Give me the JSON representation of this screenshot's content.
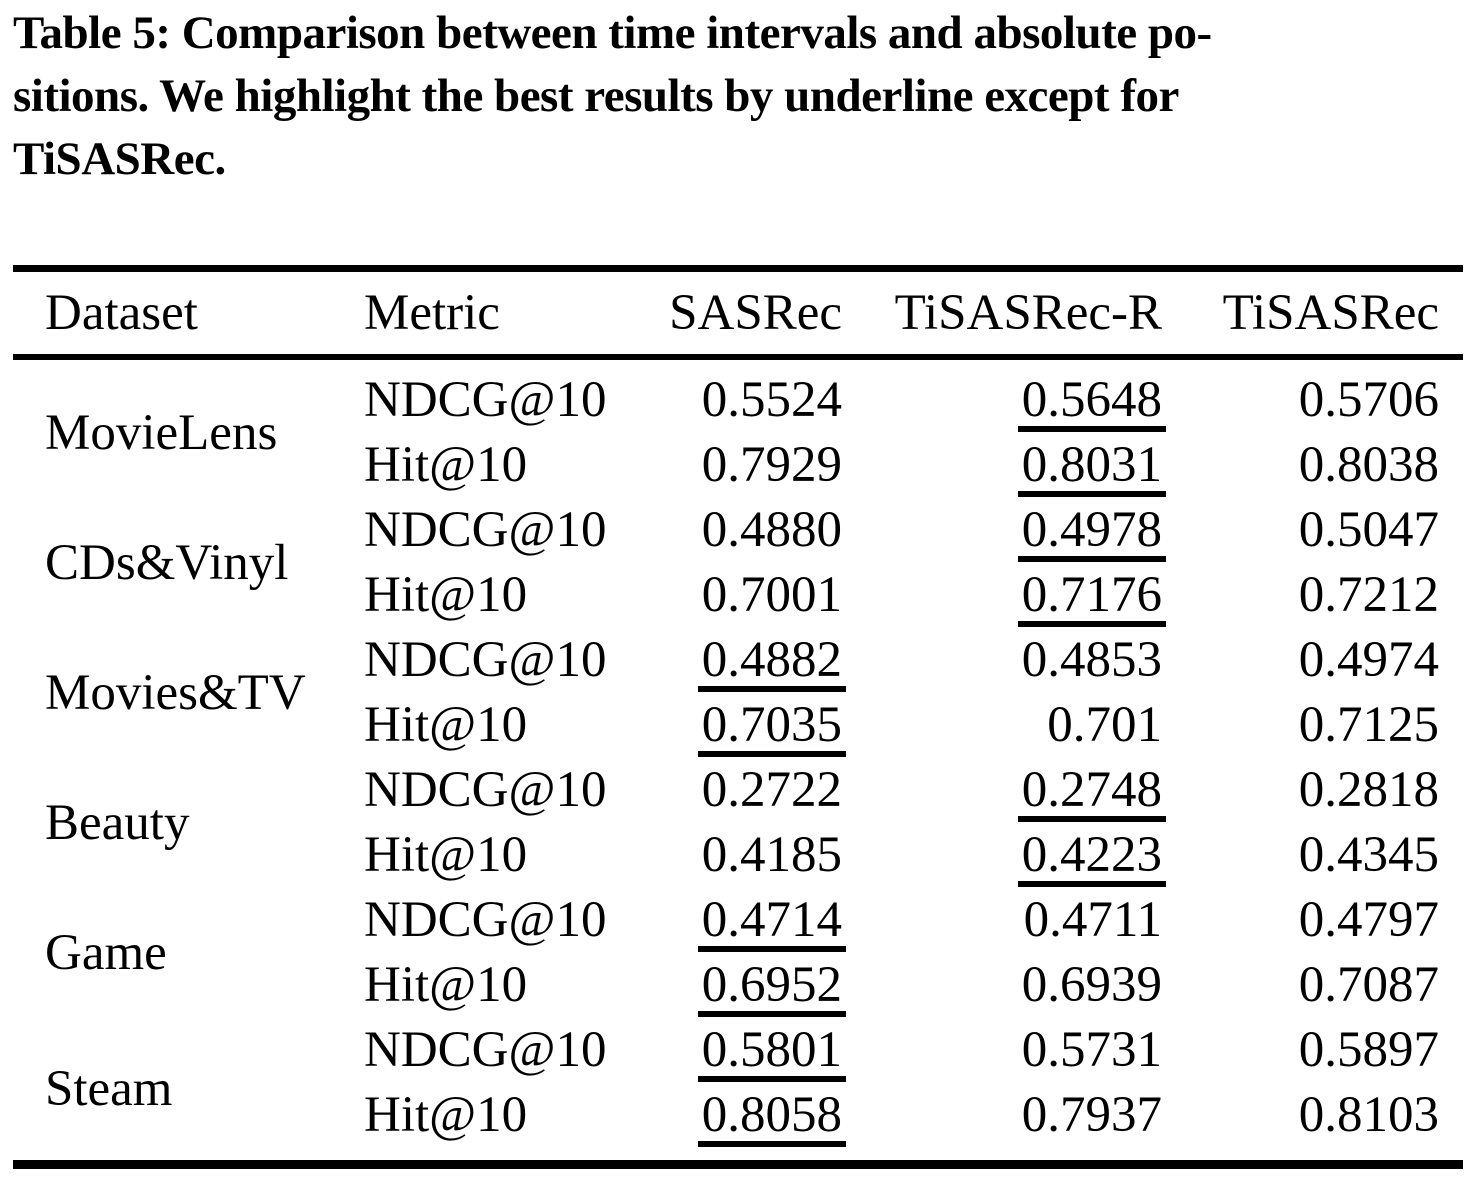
{
  "caption": {
    "lines": [
      "Table 5: Comparison between time intervals and absolute po-",
      "sitions. We highlight the best results by underline except for",
      "TiSASRec."
    ]
  },
  "table": {
    "columns": [
      "Dataset",
      "Metric",
      "SASRec",
      "TiSASRec-R",
      "TiSASRec"
    ],
    "groups": [
      {
        "dataset": "MovieLens",
        "rows": [
          {
            "metric": "NDCG@10",
            "values": [
              "0.5524",
              "0.5648",
              "0.5706"
            ],
            "underline_index": 1
          },
          {
            "metric": "Hit@10",
            "values": [
              "0.7929",
              "0.8031",
              "0.8038"
            ],
            "underline_index": 1
          }
        ]
      },
      {
        "dataset": "CDs&Vinyl",
        "rows": [
          {
            "metric": "NDCG@10",
            "values": [
              "0.4880",
              "0.4978",
              "0.5047"
            ],
            "underline_index": 1
          },
          {
            "metric": "Hit@10",
            "values": [
              "0.7001",
              "0.7176",
              "0.7212"
            ],
            "underline_index": 1
          }
        ]
      },
      {
        "dataset": "Movies&TV",
        "rows": [
          {
            "metric": "NDCG@10",
            "values": [
              "0.4882",
              "0.4853",
              "0.4974"
            ],
            "underline_index": 0
          },
          {
            "metric": "Hit@10",
            "values": [
              "0.7035",
              "0.701",
              "0.7125"
            ],
            "underline_index": 0
          }
        ]
      },
      {
        "dataset": "Beauty",
        "rows": [
          {
            "metric": "NDCG@10",
            "values": [
              "0.2722",
              "0.2748",
              "0.2818"
            ],
            "underline_index": 1
          },
          {
            "metric": "Hit@10",
            "values": [
              "0.4185",
              "0.4223",
              "0.4345"
            ],
            "underline_index": 1
          }
        ]
      },
      {
        "dataset": "Game",
        "rows": [
          {
            "metric": "NDCG@10",
            "values": [
              "0.4714",
              "0.4711",
              "0.4797"
            ],
            "underline_index": 0
          },
          {
            "metric": "Hit@10",
            "values": [
              "0.6952",
              "0.6939",
              "0.7087"
            ],
            "underline_index": 0
          }
        ]
      },
      {
        "dataset": "Steam",
        "rows": [
          {
            "metric": "NDCG@10",
            "values": [
              "0.5801",
              "0.5731",
              "0.5897"
            ],
            "underline_index": 0
          },
          {
            "metric": "Hit@10",
            "values": [
              "0.8058",
              "0.7937",
              "0.8103"
            ],
            "underline_index": 0
          }
        ]
      }
    ]
  },
  "colors": {
    "text": "#000000",
    "background": "#ffffff",
    "rule": "#000000"
  }
}
